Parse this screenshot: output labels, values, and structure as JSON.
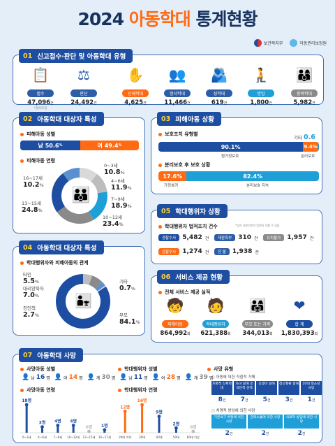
{
  "title": {
    "year": "2024",
    "highlight": "아동학대",
    "rest": "통계현황"
  },
  "logos": {
    "ministry": "보건복지부",
    "agency": "아동권리보장원"
  },
  "s01": {
    "num": "01",
    "title": "신고접수·판단 및 아동학대 유형",
    "items": [
      {
        "icon": "report-icon",
        "label": "접수",
        "value": "47,096",
        "unit": "건",
        "note": "*중복포함",
        "color": "#2e5da8"
      },
      {
        "icon": "scale-icon",
        "label": "판단",
        "value": "24,492",
        "unit": "건",
        "color": "#2e5da8"
      },
      {
        "icon": "hand-icon",
        "label": "신체학대",
        "value": "4,625",
        "unit": "건",
        "color": "#ff6a13"
      },
      {
        "icon": "people-icon",
        "label": "정서학대",
        "value": "11,466",
        "unit": "건",
        "color": "#2e5da8"
      },
      {
        "icon": "hug-icon",
        "label": "성학대",
        "value": "619",
        "unit": "건",
        "color": "#2e5da8"
      },
      {
        "icon": "crouch-icon",
        "label": "방임",
        "value": "1,800",
        "unit": "건",
        "color": "#1e9fd8"
      },
      {
        "icon": "group-icon",
        "label": "중복학대",
        "value": "5,982",
        "unit": "건",
        "color": "#8a8a8a"
      }
    ]
  },
  "s02": {
    "num": "02",
    "title": "아동학대 대상자 특성",
    "gender_title": "피해아동 성별",
    "male": "남 50.6",
    "female": "여 49.4",
    "pct": "%",
    "age_title": "피해아동 연령",
    "ages": [
      {
        "label": "0~3세",
        "value": "10.8"
      },
      {
        "label": "4~6세",
        "value": "11.9"
      },
      {
        "label": "7~9세",
        "value": "18.9"
      },
      {
        "label": "10~12세",
        "value": "23.4"
      },
      {
        "label": "13~15세",
        "value": "24.8"
      },
      {
        "label": "16~17세",
        "value": "10.2"
      }
    ]
  },
  "s03": {
    "num": "03",
    "title": "피해아동 상황",
    "protect_title": "보호조치 유형별",
    "etc_label": "기타",
    "etc": "0.6",
    "orig_value": "90.1%",
    "orig_label": "원가정보호",
    "sep_value": "9.4%",
    "sep_label": "분리보호",
    "after_title": "분리보호 후 보호 상황",
    "home_value": "17.6%",
    "home_label": "가정복귀",
    "cont_value": "82.4%",
    "cont_label": "분리보호 지속"
  },
  "s05": {
    "num": "05",
    "title": "학대행위자 상황",
    "sub": "학대행위자 법적조치 건수",
    "note": "*심의 사항기반의 입력의 이를 수 임음",
    "rows": [
      [
        {
          "tag": "경찰수사",
          "value": "5,482",
          "color": "#1d4ea1"
        },
        {
          "tag": "재판회부",
          "value": "310",
          "color": "#2e5da8"
        },
        {
          "tag": "유치불가",
          "value": "1,957",
          "color": "#8a8a8a"
        }
      ],
      [
        {
          "tag": "검찰수사",
          "value": "1,274",
          "color": "#ff6a13"
        },
        {
          "tag": "전 불",
          "value": "1,938",
          "color": "#2e5da8"
        }
      ]
    ],
    "unit": "건"
  },
  "s04": {
    "num": "04",
    "title": "아동학대 대상자 특성",
    "sub": "학대행위자와 피해아동의 관계",
    "rel": [
      {
        "label": "타인",
        "value": "5.5"
      },
      {
        "label": "대리양육자",
        "value": "7.0"
      },
      {
        "label": "친인척",
        "value": "2.7"
      },
      {
        "label": "기타",
        "value": "0.7"
      },
      {
        "label": "부모",
        "value": "84.1"
      }
    ]
  },
  "s06": {
    "num": "06",
    "title": "서비스 제공 현황",
    "sub": "전체 서비스 제공 실적",
    "items": [
      {
        "icon": "child-icon",
        "label": "피해아동",
        "value": "864,992",
        "unit": "회",
        "color": "#ff6a13"
      },
      {
        "icon": "adult-icon",
        "label": "학대행위자",
        "value": "621,388",
        "unit": "회",
        "color": "#1e9fd8"
      },
      {
        "icon": "family-icon",
        "label": "부모 또는 가족",
        "value": "344,013",
        "unit": "회",
        "color": "#8a8a8a"
      },
      {
        "icon": "heart-icon",
        "label": "합 계",
        "value": "1,830,393",
        "unit": "회",
        "color": "#1d4ea1"
      }
    ]
  },
  "s07": {
    "num": "07",
    "title": "아동학대 사망",
    "victim_gender_title": "사망아동 성별",
    "victim_gender": [
      {
        "label": "남",
        "value": "16"
      },
      {
        "label": "여",
        "value": "14"
      },
      {
        "label": "계",
        "value": "30"
      }
    ],
    "perp_gender_title": "학대행위자 성별",
    "perp_gender": [
      {
        "label": "남",
        "value": "11"
      },
      {
        "label": "여",
        "value": "28"
      },
      {
        "label": "계",
        "value": "39"
      }
    ],
    "unit_person": "명",
    "victim_age_title": "사망아동 연령",
    "victim_age": [
      {
        "label": "0~3세",
        "value": 18
      },
      {
        "label": "4~6세",
        "value": 3
      },
      {
        "label": "7~9세",
        "value": 4
      },
      {
        "label": "10~12세",
        "value": 4
      },
      {
        "label": "13~15세",
        "value": 0
      },
      {
        "label": "16~17세",
        "value": 1
      }
    ],
    "perp_age_title": "학대행위자 연령",
    "perp_age": [
      {
        "label": "20대 이하",
        "value": 12
      },
      {
        "label": "30대",
        "value": 16
      },
      {
        "label": "40대",
        "value": 9
      },
      {
        "label": "50대",
        "value": 2
      },
      {
        "label": "60대 이상",
        "value": 0
      }
    ],
    "cause_title": "사망 유형",
    "cause_a_title": "아동에 대한 직접적 가해",
    "cause_a": [
      {
        "label": "치명적 신체학대",
        "value": "8"
      },
      {
        "label": "자녀 살해 후 극단적 선택",
        "value": "7"
      },
      {
        "label": "신생아 살해",
        "value": "5"
      },
      {
        "label": "정신질환 살해",
        "value": "3"
      },
      {
        "label": "10대 청소년 사망",
        "value": "1"
      }
    ],
    "cause_b_title": "치명적 방임에 의한 사망",
    "cause_b": [
      {
        "label": "기본욕구 박탈에 의한 사망",
        "value": "2"
      },
      {
        "label": "감독소홀에 의한 사망",
        "value": "2"
      },
      {
        "label": "의료적 방임에 의한 사망",
        "value": "2"
      }
    ],
    "unit_case": "건"
  }
}
